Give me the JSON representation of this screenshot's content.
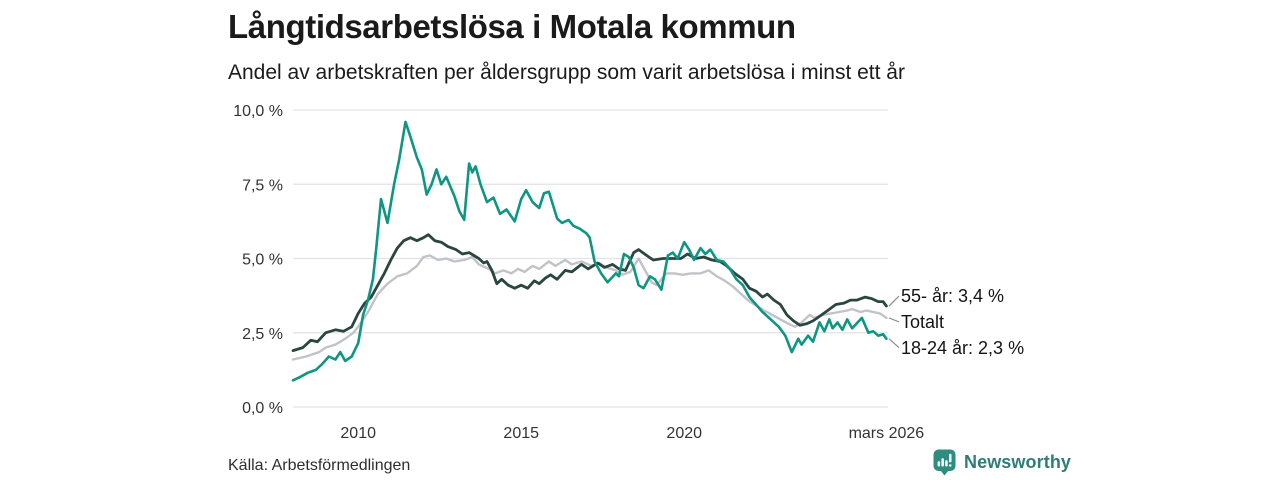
{
  "header": {
    "title": "Långtidsarbetslösa i Motala kommun",
    "subtitle": "Andel av arbetskraften per åldersgrupp som varit arbetslösa i minst ett år"
  },
  "footer": {
    "source": "Källa: Arbetsförmedlingen",
    "brand": "Newsworthy"
  },
  "colors": {
    "teal_series": "#0e9682",
    "dark_series": "#2a463f",
    "gray_series": "#c2c3c9",
    "gridline": "#e3e3e6",
    "tick_text": "#333333",
    "connector": "#8f8f8f",
    "brand_teal": "#2f7d74"
  },
  "chart_data": {
    "type": "line",
    "title": "Långtidsarbetslösa i Motala kommun",
    "subtitle": "Andel av arbetskraften per åldersgrupp som varit arbetslösa i minst ett år",
    "source": "Källa: Arbetsförmedlingen",
    "ylabel": "",
    "xlabel": "",
    "ylim": [
      0,
      10
    ],
    "x_range": [
      2008.0,
      2026.25
    ],
    "grid": "horizontal",
    "legend_position": "right-end-labels",
    "yticks": [
      {
        "v": 0,
        "label": "0,0 %"
      },
      {
        "v": 2.5,
        "label": "2,5 %"
      },
      {
        "v": 5,
        "label": "5,0 %"
      },
      {
        "v": 7.5,
        "label": "7,5 %"
      },
      {
        "v": 10,
        "label": "10,0 %"
      }
    ],
    "xticks": [
      {
        "v": 2010,
        "label": "2010"
      },
      {
        "v": 2015,
        "label": "2015"
      },
      {
        "v": 2020,
        "label": "2020"
      },
      {
        "v": 2026.2,
        "label": "mars 2026"
      }
    ],
    "annotations": [
      {
        "label": "55- år: 3,4 %",
        "series": "55- år",
        "end_value": 3.4
      },
      {
        "label": "Totalt",
        "series": "Totalt",
        "end_value": 3.0
      },
      {
        "label": "18-24 år: 2,3 %",
        "series": "18-24 år",
        "end_value": 2.3
      }
    ],
    "series": [
      {
        "name": "Totalt",
        "color_key": "gray_series",
        "width": 2.4,
        "points": [
          [
            2008.0,
            1.6
          ],
          [
            2008.4,
            1.7
          ],
          [
            2008.8,
            1.85
          ],
          [
            2009.0,
            2.0
          ],
          [
            2009.3,
            2.1
          ],
          [
            2009.6,
            2.3
          ],
          [
            2009.85,
            2.5
          ],
          [
            2010.0,
            2.7
          ],
          [
            2010.3,
            3.2
          ],
          [
            2010.6,
            3.8
          ],
          [
            2010.9,
            4.15
          ],
          [
            2011.2,
            4.4
          ],
          [
            2011.5,
            4.5
          ],
          [
            2011.8,
            4.75
          ],
          [
            2012.0,
            5.05
          ],
          [
            2012.2,
            5.1
          ],
          [
            2012.45,
            4.95
          ],
          [
            2012.7,
            5.0
          ],
          [
            2012.95,
            4.9
          ],
          [
            2013.25,
            4.95
          ],
          [
            2013.5,
            5.05
          ],
          [
            2013.7,
            4.8
          ],
          [
            2014.0,
            4.65
          ],
          [
            2014.2,
            4.5
          ],
          [
            2014.45,
            4.6
          ],
          [
            2014.7,
            4.5
          ],
          [
            2014.9,
            4.65
          ],
          [
            2015.1,
            4.55
          ],
          [
            2015.35,
            4.75
          ],
          [
            2015.55,
            4.65
          ],
          [
            2015.85,
            4.9
          ],
          [
            2016.05,
            4.75
          ],
          [
            2016.35,
            4.95
          ],
          [
            2016.55,
            4.8
          ],
          [
            2016.85,
            4.9
          ],
          [
            2017.15,
            4.75
          ],
          [
            2017.4,
            4.85
          ],
          [
            2017.6,
            4.7
          ],
          [
            2017.9,
            4.6
          ],
          [
            2018.1,
            4.45
          ],
          [
            2018.35,
            4.55
          ],
          [
            2018.6,
            5.0
          ],
          [
            2018.8,
            4.6
          ],
          [
            2019.0,
            4.2
          ],
          [
            2019.15,
            4.1
          ],
          [
            2019.45,
            4.5
          ],
          [
            2019.7,
            4.5
          ],
          [
            2019.95,
            4.45
          ],
          [
            2020.2,
            4.5
          ],
          [
            2020.5,
            4.5
          ],
          [
            2020.75,
            4.6
          ],
          [
            2021.0,
            4.4
          ],
          [
            2021.25,
            4.25
          ],
          [
            2021.5,
            4.05
          ],
          [
            2021.7,
            3.85
          ],
          [
            2021.95,
            3.6
          ],
          [
            2022.15,
            3.45
          ],
          [
            2022.45,
            3.25
          ],
          [
            2022.7,
            3.1
          ],
          [
            2022.95,
            2.95
          ],
          [
            2023.2,
            2.8
          ],
          [
            2023.4,
            2.7
          ],
          [
            2023.6,
            2.85
          ],
          [
            2023.85,
            3.1
          ],
          [
            2024.0,
            3.0
          ],
          [
            2024.25,
            3.1
          ],
          [
            2024.5,
            3.15
          ],
          [
            2024.75,
            3.2
          ],
          [
            2025.0,
            3.25
          ],
          [
            2025.15,
            3.3
          ],
          [
            2025.4,
            3.2
          ],
          [
            2025.6,
            3.25
          ],
          [
            2025.8,
            3.2
          ],
          [
            2026.0,
            3.15
          ],
          [
            2026.2,
            3.0
          ]
        ]
      },
      {
        "name": "55- år",
        "color_key": "dark_series",
        "width": 2.8,
        "points": [
          [
            2008.0,
            1.9
          ],
          [
            2008.3,
            2.0
          ],
          [
            2008.55,
            2.25
          ],
          [
            2008.75,
            2.2
          ],
          [
            2009.0,
            2.5
          ],
          [
            2009.3,
            2.6
          ],
          [
            2009.55,
            2.55
          ],
          [
            2009.8,
            2.7
          ],
          [
            2010.0,
            3.15
          ],
          [
            2010.2,
            3.5
          ],
          [
            2010.4,
            3.7
          ],
          [
            2010.6,
            4.1
          ],
          [
            2010.8,
            4.5
          ],
          [
            2011.0,
            4.95
          ],
          [
            2011.2,
            5.35
          ],
          [
            2011.4,
            5.6
          ],
          [
            2011.6,
            5.7
          ],
          [
            2011.8,
            5.6
          ],
          [
            2012.0,
            5.7
          ],
          [
            2012.15,
            5.8
          ],
          [
            2012.35,
            5.6
          ],
          [
            2012.55,
            5.55
          ],
          [
            2012.75,
            5.4
          ],
          [
            2013.0,
            5.3
          ],
          [
            2013.2,
            5.15
          ],
          [
            2013.4,
            5.2
          ],
          [
            2013.55,
            5.1
          ],
          [
            2013.7,
            5.0
          ],
          [
            2013.85,
            4.85
          ],
          [
            2013.95,
            4.9
          ],
          [
            2014.1,
            4.6
          ],
          [
            2014.25,
            4.15
          ],
          [
            2014.4,
            4.3
          ],
          [
            2014.6,
            4.1
          ],
          [
            2014.8,
            4.0
          ],
          [
            2015.0,
            4.1
          ],
          [
            2015.2,
            4.0
          ],
          [
            2015.4,
            4.25
          ],
          [
            2015.55,
            4.15
          ],
          [
            2015.75,
            4.35
          ],
          [
            2015.9,
            4.45
          ],
          [
            2016.1,
            4.3
          ],
          [
            2016.35,
            4.6
          ],
          [
            2016.55,
            4.55
          ],
          [
            2016.85,
            4.8
          ],
          [
            2017.05,
            4.65
          ],
          [
            2017.35,
            4.85
          ],
          [
            2017.55,
            4.7
          ],
          [
            2017.8,
            4.8
          ],
          [
            2018.0,
            4.65
          ],
          [
            2018.2,
            4.6
          ],
          [
            2018.45,
            5.2
          ],
          [
            2018.6,
            5.3
          ],
          [
            2018.85,
            5.1
          ],
          [
            2019.05,
            4.95
          ],
          [
            2019.35,
            5.0
          ],
          [
            2019.65,
            5.0
          ],
          [
            2019.9,
            5.0
          ],
          [
            2020.1,
            5.15
          ],
          [
            2020.35,
            5.0
          ],
          [
            2020.6,
            5.05
          ],
          [
            2020.85,
            4.95
          ],
          [
            2021.1,
            4.9
          ],
          [
            2021.3,
            4.75
          ],
          [
            2021.55,
            4.5
          ],
          [
            2021.8,
            4.3
          ],
          [
            2022.0,
            4.0
          ],
          [
            2022.2,
            3.9
          ],
          [
            2022.4,
            3.7
          ],
          [
            2022.55,
            3.8
          ],
          [
            2022.75,
            3.6
          ],
          [
            2022.95,
            3.45
          ],
          [
            2023.15,
            3.1
          ],
          [
            2023.35,
            2.9
          ],
          [
            2023.55,
            2.75
          ],
          [
            2023.75,
            2.8
          ],
          [
            2023.95,
            2.9
          ],
          [
            2024.15,
            3.05
          ],
          [
            2024.4,
            3.25
          ],
          [
            2024.65,
            3.45
          ],
          [
            2024.9,
            3.5
          ],
          [
            2025.1,
            3.6
          ],
          [
            2025.3,
            3.6
          ],
          [
            2025.55,
            3.7
          ],
          [
            2025.75,
            3.65
          ],
          [
            2025.95,
            3.55
          ],
          [
            2026.1,
            3.55
          ],
          [
            2026.2,
            3.4
          ]
        ]
      },
      {
        "name": "18-24 år",
        "color_key": "teal_series",
        "width": 2.6,
        "points": [
          [
            2008.0,
            0.9
          ],
          [
            2008.2,
            1.0
          ],
          [
            2008.45,
            1.15
          ],
          [
            2008.7,
            1.25
          ],
          [
            2008.9,
            1.45
          ],
          [
            2009.1,
            1.7
          ],
          [
            2009.3,
            1.6
          ],
          [
            2009.45,
            1.85
          ],
          [
            2009.6,
            1.55
          ],
          [
            2009.8,
            1.7
          ],
          [
            2010.0,
            2.15
          ],
          [
            2010.15,
            3.1
          ],
          [
            2010.3,
            3.6
          ],
          [
            2010.45,
            4.3
          ],
          [
            2010.55,
            5.3
          ],
          [
            2010.7,
            7.0
          ],
          [
            2010.9,
            6.2
          ],
          [
            2011.1,
            7.5
          ],
          [
            2011.25,
            8.3
          ],
          [
            2011.45,
            9.6
          ],
          [
            2011.6,
            9.1
          ],
          [
            2011.8,
            8.4
          ],
          [
            2011.95,
            8.0
          ],
          [
            2012.1,
            7.15
          ],
          [
            2012.25,
            7.5
          ],
          [
            2012.4,
            8.0
          ],
          [
            2012.55,
            7.5
          ],
          [
            2012.7,
            7.75
          ],
          [
            2012.95,
            7.1
          ],
          [
            2013.1,
            6.6
          ],
          [
            2013.25,
            6.3
          ],
          [
            2013.4,
            8.2
          ],
          [
            2013.5,
            7.9
          ],
          [
            2013.6,
            8.1
          ],
          [
            2013.75,
            7.5
          ],
          [
            2013.95,
            6.9
          ],
          [
            2014.15,
            7.05
          ],
          [
            2014.35,
            6.5
          ],
          [
            2014.55,
            6.65
          ],
          [
            2014.8,
            6.25
          ],
          [
            2015.0,
            7.0
          ],
          [
            2015.15,
            7.3
          ],
          [
            2015.35,
            6.9
          ],
          [
            2015.55,
            6.7
          ],
          [
            2015.7,
            7.2
          ],
          [
            2015.85,
            7.25
          ],
          [
            2016.1,
            6.35
          ],
          [
            2016.25,
            6.2
          ],
          [
            2016.45,
            6.3
          ],
          [
            2016.6,
            6.1
          ],
          [
            2016.8,
            6.0
          ],
          [
            2017.0,
            5.85
          ],
          [
            2017.1,
            5.7
          ],
          [
            2017.25,
            4.9
          ],
          [
            2017.45,
            4.5
          ],
          [
            2017.65,
            4.2
          ],
          [
            2017.9,
            4.5
          ],
          [
            2018.0,
            4.4
          ],
          [
            2018.15,
            5.15
          ],
          [
            2018.3,
            5.05
          ],
          [
            2018.45,
            4.7
          ],
          [
            2018.6,
            4.1
          ],
          [
            2018.75,
            4.0
          ],
          [
            2018.95,
            4.4
          ],
          [
            2019.1,
            4.3
          ],
          [
            2019.3,
            3.95
          ],
          [
            2019.5,
            5.1
          ],
          [
            2019.65,
            5.2
          ],
          [
            2019.8,
            5.0
          ],
          [
            2020.0,
            5.55
          ],
          [
            2020.15,
            5.3
          ],
          [
            2020.3,
            4.95
          ],
          [
            2020.5,
            5.35
          ],
          [
            2020.65,
            5.15
          ],
          [
            2020.8,
            5.3
          ],
          [
            2021.0,
            4.95
          ],
          [
            2021.2,
            4.9
          ],
          [
            2021.4,
            4.65
          ],
          [
            2021.6,
            4.3
          ],
          [
            2021.8,
            4.1
          ],
          [
            2022.0,
            3.7
          ],
          [
            2022.2,
            3.45
          ],
          [
            2022.4,
            3.2
          ],
          [
            2022.6,
            3.0
          ],
          [
            2022.9,
            2.7
          ],
          [
            2023.1,
            2.4
          ],
          [
            2023.3,
            1.85
          ],
          [
            2023.5,
            2.3
          ],
          [
            2023.6,
            2.1
          ],
          [
            2023.8,
            2.4
          ],
          [
            2023.95,
            2.2
          ],
          [
            2024.15,
            2.85
          ],
          [
            2024.3,
            2.55
          ],
          [
            2024.45,
            2.95
          ],
          [
            2024.55,
            2.65
          ],
          [
            2024.7,
            2.85
          ],
          [
            2024.85,
            2.6
          ],
          [
            2025.0,
            2.95
          ],
          [
            2025.15,
            2.65
          ],
          [
            2025.45,
            3.0
          ],
          [
            2025.65,
            2.5
          ],
          [
            2025.8,
            2.55
          ],
          [
            2025.95,
            2.4
          ],
          [
            2026.1,
            2.45
          ],
          [
            2026.2,
            2.3
          ]
        ]
      }
    ]
  }
}
